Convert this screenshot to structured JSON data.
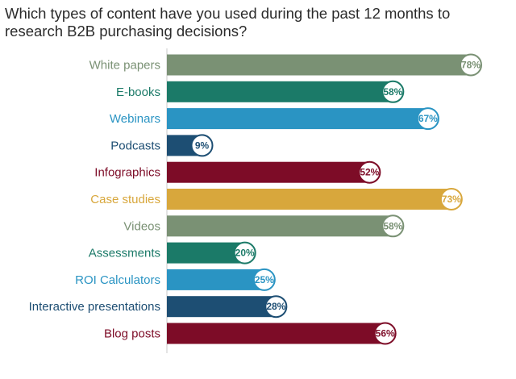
{
  "chart_data": {
    "type": "bar",
    "orientation": "horizontal",
    "title": "Which types of content have you used during the past 12 months to research B2B purchasing decisions?",
    "categories": [
      "White papers",
      "E-books",
      "Webinars",
      "Podcasts",
      "Infographics",
      "Case studies",
      "Videos",
      "Assessments",
      "ROI Calculators",
      "Interactive presentations",
      "Blog posts"
    ],
    "values": [
      78,
      58,
      67,
      9,
      52,
      73,
      58,
      20,
      25,
      28,
      56
    ],
    "value_labels": [
      "78%",
      "58%",
      "67%",
      "9%",
      "52%",
      "73%",
      "58%",
      "20%",
      "25%",
      "28%",
      "56%"
    ],
    "colors": [
      "#7a9174",
      "#1b7a68",
      "#2a94c3",
      "#1d4e73",
      "#7d0c27",
      "#d8a73c",
      "#7a9174",
      "#1b7a68",
      "#2a94c3",
      "#1d4e73",
      "#7d0c27"
    ],
    "xlim": [
      0,
      80
    ],
    "grid": false,
    "legend": "none"
  }
}
